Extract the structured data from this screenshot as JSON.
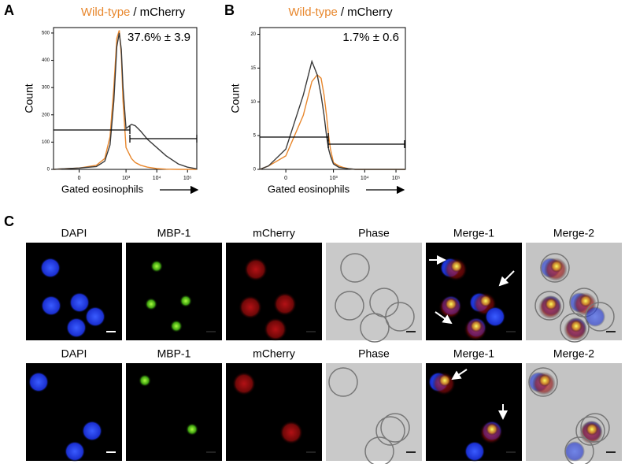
{
  "chart_data": [
    {
      "type": "line",
      "panel_label": "A",
      "legend_separator": "/",
      "annotation": "37.6% ± 3.9",
      "ylabel": "Count",
      "xlabel": "Gated eosinophils",
      "x": [
        -200,
        -100,
        0,
        100,
        200,
        300,
        400,
        500,
        600,
        700,
        800,
        1000,
        1500,
        2000,
        3000,
        5000,
        10000,
        20000,
        50000,
        100000,
        200000
      ],
      "series": [
        {
          "name": "Wild-type",
          "color": "#e8872d",
          "values": [
            0,
            2,
            5,
            15,
            40,
            120,
            300,
            480,
            510,
            420,
            250,
            80,
            40,
            25,
            15,
            8,
            3,
            1,
            0,
            0,
            0
          ]
        },
        {
          "name": "mCherry",
          "color": "#3a3a3a",
          "values": [
            0,
            2,
            5,
            10,
            30,
            90,
            250,
            450,
            500,
            440,
            300,
            150,
            165,
            160,
            140,
            110,
            80,
            50,
            20,
            8,
            2
          ]
        }
      ],
      "xlim": [
        -200,
        200000
      ],
      "xticks": [
        {
          "value": 0,
          "label": "0"
        },
        {
          "value": 1000,
          "label": "10³"
        },
        {
          "value": 10000,
          "label": "10⁴"
        },
        {
          "value": 100000,
          "label": "10⁵"
        }
      ],
      "ylim": [
        0,
        520
      ],
      "yticks": [
        0,
        100,
        200,
        300,
        400,
        500
      ]
    },
    {
      "type": "line",
      "panel_label": "B",
      "legend_separator": "/",
      "annotation": "1.7% ± 0.6",
      "ylabel": "Count",
      "xlabel": "Gated eosinophils",
      "x": [
        -200,
        -100,
        0,
        100,
        200,
        300,
        400,
        500,
        600,
        700,
        800,
        1000,
        1500,
        2000,
        3000,
        5000,
        10000,
        20000,
        50000,
        100000,
        200000
      ],
      "series": [
        {
          "name": "Wild-type",
          "color": "#e8872d",
          "values": [
            0,
            0.5,
            2,
            8,
            13,
            14,
            13.5,
            11,
            8,
            5,
            3,
            1,
            0.5,
            0.3,
            0.1,
            0,
            0,
            0,
            0,
            0,
            0
          ]
        },
        {
          "name": "mCherry",
          "color": "#3a3a3a",
          "values": [
            0,
            0.5,
            3,
            11,
            16,
            14,
            11,
            8,
            5,
            3,
            2,
            0.8,
            0.3,
            0.2,
            0.1,
            0,
            0,
            0,
            0,
            0,
            0
          ]
        }
      ],
      "xlim": [
        -200,
        200000
      ],
      "xticks": [
        {
          "value": 0,
          "label": "0"
        },
        {
          "value": 1000,
          "label": "10³"
        },
        {
          "value": 10000,
          "label": "10⁴"
        },
        {
          "value": 100000,
          "label": "10⁵"
        }
      ],
      "ylim": [
        0,
        21
      ],
      "yticks": [
        0,
        5,
        10,
        15,
        20
      ]
    }
  ],
  "panel_c": {
    "label": "C",
    "rows": [
      [
        "DAPI",
        "MBP-1",
        "mCherry",
        "Phase",
        "Merge-1",
        "Merge-2"
      ],
      [
        "DAPI",
        "MBP-1",
        "mCherry",
        "Phase",
        "Merge-1",
        "Merge-2"
      ]
    ]
  }
}
